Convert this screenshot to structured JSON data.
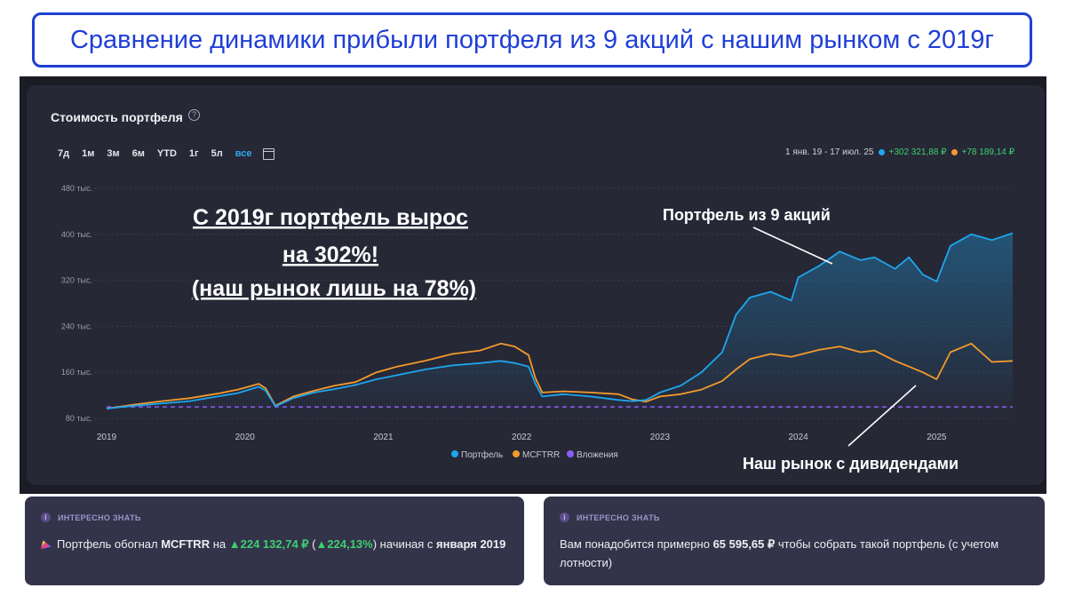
{
  "banner": {
    "title": "Сравнение динамики прибыли портфеля из 9 акций с нашим рынком с 2019г"
  },
  "card": {
    "title": "Стоимость портфеля",
    "help": "?",
    "periods": [
      "7д",
      "1м",
      "3м",
      "6м",
      "YTD",
      "1г",
      "5л",
      "все"
    ],
    "active_period": "все",
    "range_text": "1 янв. 19 - 17 июл. 25",
    "portfolio_gain": "+302 321,88 ₽",
    "market_gain": "+78 189,14 ₽"
  },
  "colors": {
    "portfolio": "#1ea6ee",
    "market": "#f59a2b",
    "investments": "#8b5cf6",
    "accent_text": "#2ea7f0",
    "banner": "#1f3fd6"
  },
  "chart_data": {
    "type": "line",
    "title": "Стоимость портфеля",
    "xlabel": "",
    "ylabel": "",
    "x_ticks": [
      "2019",
      "2020",
      "2021",
      "2022",
      "2023",
      "2024",
      "2025"
    ],
    "y_ticks": [
      "480 тыс.",
      "400 тыс.",
      "320 тыс.",
      "240 тыс.",
      "160 тыс.",
      "80 тыс."
    ],
    "ylim": [
      80000,
      480000
    ],
    "xlim": [
      2019.0,
      2025.55
    ],
    "grid": true,
    "legend_position": "bottom",
    "series": [
      {
        "name": "Портфель",
        "x": [
          2019.0,
          2019.2,
          2019.4,
          2019.6,
          2019.8,
          2019.95,
          2020.1,
          2020.15,
          2020.22,
          2020.35,
          2020.5,
          2020.65,
          2020.8,
          2020.95,
          2021.1,
          2021.3,
          2021.5,
          2021.7,
          2021.85,
          2021.95,
          2022.05,
          2022.1,
          2022.15,
          2022.3,
          2022.5,
          2022.7,
          2022.8,
          2022.9,
          2023.0,
          2023.15,
          2023.3,
          2023.45,
          2023.55,
          2023.65,
          2023.8,
          2023.95,
          2024.0,
          2024.15,
          2024.3,
          2024.45,
          2024.55,
          2024.7,
          2024.8,
          2024.9,
          2025.0,
          2025.1,
          2025.25,
          2025.4,
          2025.55
        ],
        "values": [
          97000,
          102000,
          106000,
          110000,
          118000,
          124000,
          135000,
          128000,
          101000,
          115000,
          125000,
          131000,
          138000,
          148000,
          155000,
          165000,
          172000,
          176000,
          180000,
          176000,
          170000,
          140000,
          118000,
          122000,
          118000,
          112000,
          110000,
          112000,
          125000,
          137000,
          160000,
          195000,
          260000,
          290000,
          300000,
          285000,
          325000,
          345000,
          370000,
          355000,
          360000,
          340000,
          360000,
          330000,
          318000,
          380000,
          400000,
          390000,
          402000
        ]
      },
      {
        "name": "MCFTRR",
        "x": [
          2019.0,
          2019.2,
          2019.4,
          2019.6,
          2019.8,
          2019.95,
          2020.1,
          2020.15,
          2020.22,
          2020.35,
          2020.5,
          2020.65,
          2020.8,
          2020.95,
          2021.1,
          2021.3,
          2021.5,
          2021.7,
          2021.85,
          2021.95,
          2022.05,
          2022.1,
          2022.15,
          2022.3,
          2022.5,
          2022.7,
          2022.8,
          2022.9,
          2023.0,
          2023.15,
          2023.3,
          2023.45,
          2023.55,
          2023.65,
          2023.8,
          2023.95,
          2024.0,
          2024.15,
          2024.3,
          2024.45,
          2024.55,
          2024.7,
          2024.8,
          2024.9,
          2025.0,
          2025.1,
          2025.25,
          2025.4,
          2025.55
        ],
        "values": [
          97000,
          104000,
          110000,
          115000,
          123000,
          130000,
          140000,
          132000,
          102000,
          118000,
          128000,
          137000,
          143000,
          160000,
          170000,
          180000,
          192000,
          198000,
          210000,
          205000,
          190000,
          150000,
          125000,
          127000,
          125000,
          122000,
          113000,
          109000,
          118000,
          122000,
          130000,
          145000,
          165000,
          183000,
          192000,
          187000,
          190000,
          199000,
          205000,
          195000,
          198000,
          180000,
          170000,
          160000,
          148000,
          195000,
          210000,
          178000,
          180000
        ]
      },
      {
        "name": "Вложения",
        "x": [
          2019.0,
          2025.55
        ],
        "values": [
          100000,
          100000
        ]
      }
    ],
    "annotations": [
      "С 2019г портфель вырос",
      "на 302%!",
      "(наш рынок лишь на 78%)",
      "Портфель из 9 акций",
      "Наш рынок с дивидендами"
    ]
  },
  "info_cards": [
    {
      "header": "ИНТЕРЕСНО ЗНАТЬ",
      "text_prefix": "Портфель обогнал ",
      "text_ticker": "MCFTRR",
      "text_mid": " на ",
      "text_gain": "224 132,74 ₽",
      "text_open": " (",
      "text_pct": "224,13%",
      "text_close": ") начиная с ",
      "text_date": "января 2019"
    },
    {
      "header": "ИНТЕРЕСНО ЗНАТЬ",
      "text_prefix": "Вам понадобится примерно ",
      "text_amount": "65 595,65 ₽",
      "text_suffix": " чтобы собрать такой портфель (с учетом лотности)"
    }
  ]
}
